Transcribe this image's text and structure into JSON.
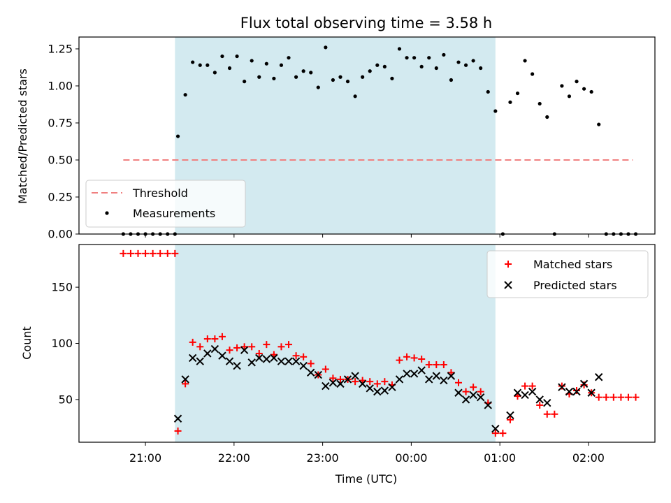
{
  "chart_data": [
    {
      "type": "scatter",
      "title": "Flux total observing time = 3.58 h",
      "xlabel": "",
      "ylabel": "Matched/Predicted stars",
      "xlim_hours": [
        20.25,
        2.75
      ],
      "ylim": [
        0,
        1.33
      ],
      "yticks": [
        "0.00",
        "0.25",
        "0.50",
        "0.75",
        "1.00",
        "1.25"
      ],
      "observing_window": {
        "start": "21:20",
        "end": "00:57"
      },
      "window_color": "#d3eaf0",
      "threshold": {
        "name": "Threshold",
        "value": 0.5,
        "x_start": "20:45",
        "x_end": "02:30",
        "color": "#f08080"
      },
      "measurements": {
        "name": "Measurements",
        "color": "#000000",
        "points": [
          [
            "20:45",
            0.0
          ],
          [
            "20:50",
            0.0
          ],
          [
            "20:55",
            0.0
          ],
          [
            "21:00",
            0.0
          ],
          [
            "21:05",
            0.0
          ],
          [
            "21:10",
            0.0
          ],
          [
            "21:15",
            0.0
          ],
          [
            "21:20",
            0.0
          ],
          [
            "21:22",
            0.66
          ],
          [
            "21:27",
            0.94
          ],
          [
            "21:32",
            1.16
          ],
          [
            "21:37",
            1.14
          ],
          [
            "21:42",
            1.14
          ],
          [
            "21:47",
            1.09
          ],
          [
            "21:52",
            1.2
          ],
          [
            "21:57",
            1.12
          ],
          [
            "22:02",
            1.2
          ],
          [
            "22:07",
            1.03
          ],
          [
            "22:12",
            1.17
          ],
          [
            "22:17",
            1.06
          ],
          [
            "22:22",
            1.15
          ],
          [
            "22:27",
            1.05
          ],
          [
            "22:32",
            1.14
          ],
          [
            "22:37",
            1.19
          ],
          [
            "22:42",
            1.06
          ],
          [
            "22:47",
            1.1
          ],
          [
            "22:52",
            1.09
          ],
          [
            "22:57",
            0.99
          ],
          [
            "23:02",
            1.26
          ],
          [
            "23:07",
            1.04
          ],
          [
            "23:12",
            1.06
          ],
          [
            "23:17",
            1.03
          ],
          [
            "23:22",
            0.93
          ],
          [
            "23:27",
            1.06
          ],
          [
            "23:32",
            1.1
          ],
          [
            "23:37",
            1.14
          ],
          [
            "23:42",
            1.13
          ],
          [
            "23:47",
            1.05
          ],
          [
            "23:52",
            1.25
          ],
          [
            "23:57",
            1.19
          ],
          [
            "00:02",
            1.19
          ],
          [
            "00:07",
            1.13
          ],
          [
            "00:12",
            1.19
          ],
          [
            "00:17",
            1.12
          ],
          [
            "00:22",
            1.21
          ],
          [
            "00:27",
            1.04
          ],
          [
            "00:32",
            1.16
          ],
          [
            "00:37",
            1.14
          ],
          [
            "00:42",
            1.17
          ],
          [
            "00:47",
            1.12
          ],
          [
            "00:52",
            0.96
          ],
          [
            "00:57",
            0.83
          ],
          [
            "01:02",
            0.0
          ],
          [
            "01:07",
            0.89
          ],
          [
            "01:12",
            0.95
          ],
          [
            "01:17",
            1.17
          ],
          [
            "01:22",
            1.08
          ],
          [
            "01:27",
            0.88
          ],
          [
            "01:32",
            0.79
          ],
          [
            "01:37",
            0.0
          ],
          [
            "01:42",
            1.0
          ],
          [
            "01:47",
            0.93
          ],
          [
            "01:52",
            1.03
          ],
          [
            "01:57",
            0.98
          ],
          [
            "02:02",
            0.96
          ],
          [
            "02:07",
            0.74
          ],
          [
            "02:12",
            0.0
          ],
          [
            "02:17",
            0.0
          ],
          [
            "02:22",
            0.0
          ],
          [
            "02:27",
            0.0
          ],
          [
            "02:32",
            0.0
          ]
        ]
      },
      "legend": {
        "location": "lower-left",
        "entries": [
          "Threshold",
          "Measurements"
        ]
      }
    },
    {
      "type": "scatter",
      "title": "",
      "xlabel": "Time (UTC)",
      "ylabel": "Count",
      "xlim_hours": [
        20.25,
        2.75
      ],
      "ylim": [
        12,
        188
      ],
      "yticks": [
        "50",
        "100",
        "150"
      ],
      "xticks": [
        "21:00",
        "22:00",
        "23:00",
        "00:00",
        "01:00",
        "02:00"
      ],
      "observing_window": {
        "start": "21:20",
        "end": "00:57"
      },
      "series": [
        {
          "name": "Matched stars",
          "marker": "plus",
          "color": "#ff0000",
          "points": [
            [
              "20:45",
              180
            ],
            [
              "20:50",
              180
            ],
            [
              "20:55",
              180
            ],
            [
              "21:00",
              180
            ],
            [
              "21:05",
              180
            ],
            [
              "21:10",
              180
            ],
            [
              "21:15",
              180
            ],
            [
              "21:20",
              180
            ],
            [
              "21:22",
              22
            ],
            [
              "21:27",
              64
            ],
            [
              "21:32",
              101
            ],
            [
              "21:37",
              97
            ],
            [
              "21:42",
              104
            ],
            [
              "21:47",
              104
            ],
            [
              "21:52",
              106
            ],
            [
              "21:57",
              94
            ],
            [
              "22:02",
              96
            ],
            [
              "22:07",
              97
            ],
            [
              "22:12",
              97
            ],
            [
              "22:17",
              91
            ],
            [
              "22:22",
              99
            ],
            [
              "22:27",
              90
            ],
            [
              "22:32",
              97
            ],
            [
              "22:37",
              99
            ],
            [
              "22:42",
              89
            ],
            [
              "22:47",
              88
            ],
            [
              "22:52",
              82
            ],
            [
              "22:57",
              72
            ],
            [
              "23:02",
              77
            ],
            [
              "23:07",
              69
            ],
            [
              "23:12",
              68
            ],
            [
              "23:17",
              68
            ],
            [
              "23:22",
              66
            ],
            [
              "23:27",
              67
            ],
            [
              "23:32",
              66
            ],
            [
              "23:37",
              64
            ],
            [
              "23:42",
              66
            ],
            [
              "23:47",
              63
            ],
            [
              "23:52",
              85
            ],
            [
              "23:57",
              88
            ],
            [
              "00:02",
              87
            ],
            [
              "00:07",
              86
            ],
            [
              "00:12",
              81
            ],
            [
              "00:17",
              81
            ],
            [
              "00:22",
              81
            ],
            [
              "00:27",
              74
            ],
            [
              "00:32",
              65
            ],
            [
              "00:37",
              57
            ],
            [
              "00:42",
              61
            ],
            [
              "00:47",
              57
            ],
            [
              "00:52",
              47
            ],
            [
              "00:57",
              20
            ],
            [
              "01:02",
              20
            ],
            [
              "01:07",
              32
            ],
            [
              "01:12",
              53
            ],
            [
              "01:17",
              62
            ],
            [
              "01:22",
              62
            ],
            [
              "01:27",
              45
            ],
            [
              "01:32",
              37
            ],
            [
              "01:37",
              37
            ],
            [
              "01:42",
              62
            ],
            [
              "01:47",
              55
            ],
            [
              "01:52",
              58
            ],
            [
              "01:57",
              63
            ],
            [
              "02:02",
              56
            ],
            [
              "02:07",
              52
            ],
            [
              "02:12",
              52
            ],
            [
              "02:17",
              52
            ],
            [
              "02:22",
              52
            ],
            [
              "02:27",
              52
            ],
            [
              "02:32",
              52
            ]
          ]
        },
        {
          "name": "Predicted stars",
          "marker": "x",
          "color": "#000000",
          "points": [
            [
              "21:22",
              33
            ],
            [
              "21:27",
              68
            ],
            [
              "21:32",
              87
            ],
            [
              "21:37",
              84
            ],
            [
              "21:42",
              91
            ],
            [
              "21:47",
              95
            ],
            [
              "21:52",
              89
            ],
            [
              "21:57",
              84
            ],
            [
              "22:02",
              80
            ],
            [
              "22:07",
              94
            ],
            [
              "22:12",
              83
            ],
            [
              "22:17",
              87
            ],
            [
              "22:22",
              86
            ],
            [
              "22:27",
              87
            ],
            [
              "22:32",
              84
            ],
            [
              "22:37",
              84
            ],
            [
              "22:42",
              84
            ],
            [
              "22:47",
              80
            ],
            [
              "22:52",
              74
            ],
            [
              "22:57",
              72
            ],
            [
              "23:02",
              62
            ],
            [
              "23:07",
              65
            ],
            [
              "23:12",
              64
            ],
            [
              "23:17",
              68
            ],
            [
              "23:22",
              71
            ],
            [
              "23:27",
              64
            ],
            [
              "23:32",
              60
            ],
            [
              "23:37",
              57
            ],
            [
              "23:42",
              58
            ],
            [
              "23:47",
              61
            ],
            [
              "23:52",
              68
            ],
            [
              "23:57",
              73
            ],
            [
              "00:02",
              73
            ],
            [
              "00:07",
              76
            ],
            [
              "00:12",
              68
            ],
            [
              "00:17",
              71
            ],
            [
              "00:22",
              67
            ],
            [
              "00:27",
              71
            ],
            [
              "00:32",
              56
            ],
            [
              "00:37",
              50
            ],
            [
              "00:42",
              54
            ],
            [
              "00:47",
              52
            ],
            [
              "00:52",
              45
            ],
            [
              "00:57",
              24
            ],
            [
              "01:07",
              36
            ],
            [
              "01:12",
              56
            ],
            [
              "01:17",
              54
            ],
            [
              "01:22",
              57
            ],
            [
              "01:27",
              50
            ],
            [
              "01:32",
              47
            ],
            [
              "01:42",
              61
            ],
            [
              "01:47",
              57
            ],
            [
              "01:52",
              57
            ],
            [
              "01:57",
              64
            ],
            [
              "02:02",
              56
            ],
            [
              "02:07",
              70
            ]
          ]
        }
      ],
      "legend": {
        "location": "upper-right",
        "entries": [
          "Matched stars",
          "Predicted stars"
        ]
      }
    }
  ]
}
